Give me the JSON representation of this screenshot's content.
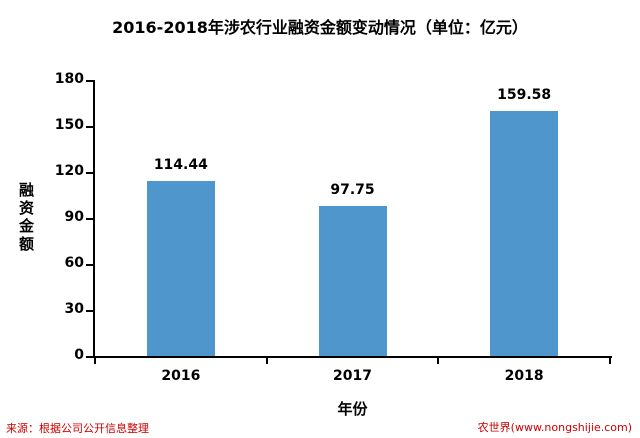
{
  "source_note": "来源：根据公司公开信息整理",
  "watermark": "农世界(www.nongshijie.com)",
  "colors": {
    "bar": "#4e96cb",
    "note_red": "#cc0000",
    "axis": "#000000"
  },
  "chart_data": {
    "type": "bar",
    "title": "2016-2018年涉农行业融资金额变动情况（单位：亿元）",
    "categories": [
      "2016",
      "2017",
      "2018"
    ],
    "values": [
      114.44,
      97.75,
      159.58
    ],
    "value_labels": [
      "114.44",
      "97.75",
      "159.58"
    ],
    "xlabel": "年份",
    "ylabel": "融资金额",
    "ylim": [
      0,
      180
    ],
    "yticks": [
      0,
      30,
      60,
      90,
      120,
      150,
      180
    ],
    "grid": false,
    "legend": false,
    "bar_color": "#4e96cb"
  }
}
